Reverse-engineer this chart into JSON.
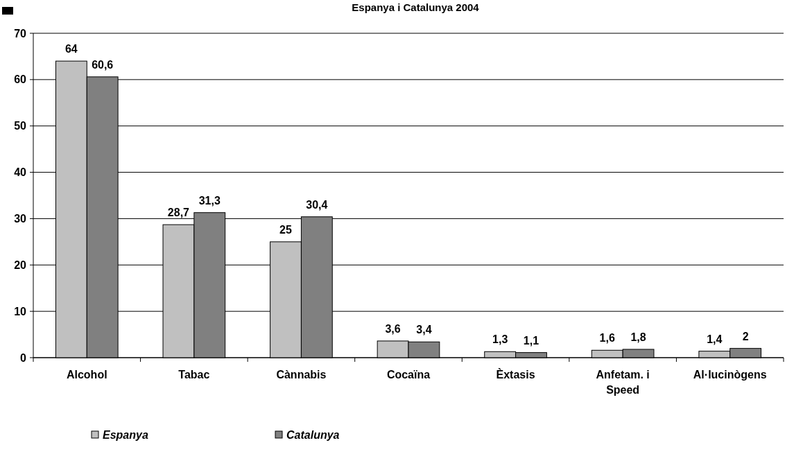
{
  "chart_data": {
    "type": "bar",
    "title": "Espanya i Catalunya 2004",
    "categories": [
      "Alcohol",
      "Tabac",
      "Cànnabis",
      "Cocaïna",
      "Èxtasis",
      "Anfetam. i Speed",
      "Al·lucinògens"
    ],
    "series": [
      {
        "name": "Espanya",
        "color": "#c0c0c0",
        "values": [
          64,
          28.7,
          25,
          3.6,
          1.3,
          1.6,
          1.4
        ]
      },
      {
        "name": "Catalunya",
        "color": "#808080",
        "values": [
          60.6,
          31.3,
          30.4,
          3.4,
          1.1,
          1.8,
          2
        ]
      }
    ],
    "value_labels": [
      [
        "64",
        "28,7",
        "25",
        "3,6",
        "1,3",
        "1,6",
        "1,4"
      ],
      [
        "60,6",
        "31,3",
        "30,4",
        "3,4",
        "1,1",
        "1,8",
        "2"
      ]
    ],
    "ylim": [
      0,
      70
    ],
    "yticks": [
      0,
      10,
      20,
      30,
      40,
      50,
      60,
      70
    ],
    "grid": "y",
    "legend": "bottom left"
  }
}
